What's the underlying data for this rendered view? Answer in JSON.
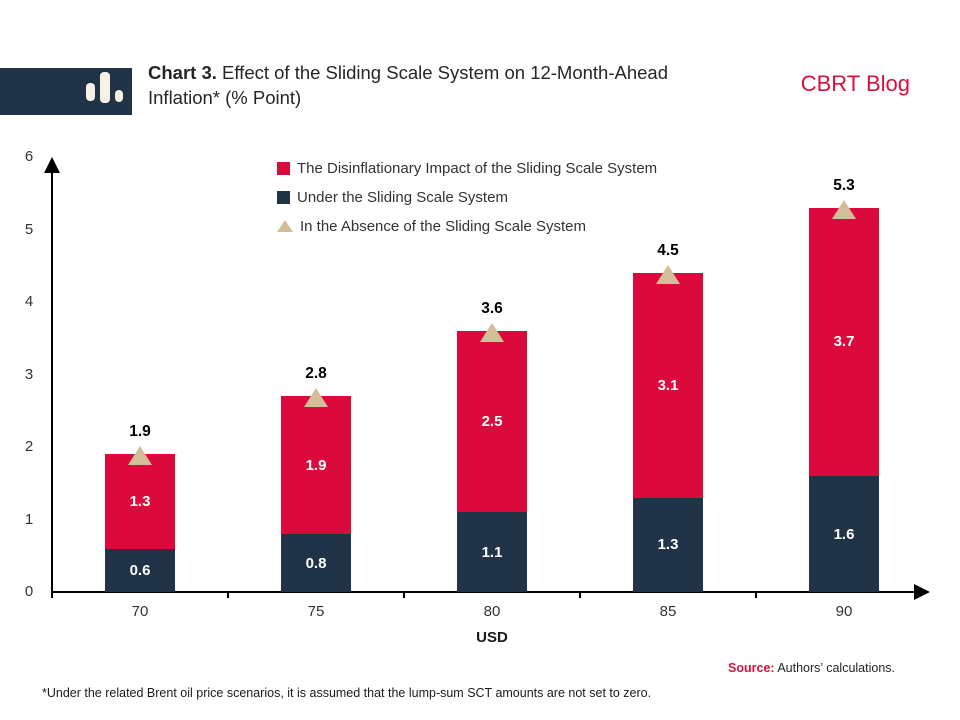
{
  "header": {
    "title_prefix": "Chart 3.",
    "title_line1_rest": " Effect of the Sliding Scale System on 12-Month-Ahead",
    "title_line2": "Inflation* (% Point)",
    "brand": "CBRT Blog"
  },
  "colors": {
    "red": "#dc0a3c",
    "navy": "#213447",
    "tan": "#d2be98",
    "brand_red": "#d8103f"
  },
  "legend": {
    "items": [
      {
        "label": "The Disinflationary Impact of the Sliding Scale System",
        "marker": "square",
        "color": "#dc0a3c"
      },
      {
        "label": "Under the Sliding Scale System",
        "marker": "square",
        "color": "#213447"
      },
      {
        "label": "In the Absence of the Sliding Scale System",
        "marker": "triangle",
        "color": "#d2be98"
      }
    ]
  },
  "chart_data": {
    "type": "bar",
    "stacked": true,
    "title": "Chart 3. Effect of the Sliding Scale System on 12-Month-Ahead Inflation* (% Point)",
    "categories": [
      "70",
      "75",
      "80",
      "85",
      "90"
    ],
    "series": [
      {
        "name": "Under the Sliding Scale System",
        "color": "#213447",
        "values": [
          0.6,
          0.8,
          1.1,
          1.3,
          1.6
        ]
      },
      {
        "name": "The Disinflationary Impact of the Sliding Scale System",
        "color": "#dc0a3c",
        "values": [
          1.3,
          1.9,
          2.5,
          3.1,
          3.7
        ]
      }
    ],
    "markers": {
      "name": "In the Absence of the Sliding Scale System",
      "shape": "triangle-up",
      "color": "#d2be98",
      "values": [
        1.9,
        2.8,
        3.6,
        4.5,
        5.3
      ]
    },
    "total_labels": [
      "1.9",
      "2.8",
      "3.6",
      "4.5",
      "5.3"
    ],
    "xlabel": "USD",
    "ylabel": "",
    "ylim": [
      0,
      6
    ],
    "yticks": [
      "0",
      "1",
      "2",
      "3",
      "4",
      "5",
      "6"
    ],
    "grid": false,
    "legend_position": "top-center"
  },
  "footer": {
    "source_label": "Source:",
    "source_text": " Authors’ calculations.",
    "footnote": "*Under the related Brent oil price scenarios, it is assumed that the lump-sum SCT amounts are not set to zero."
  }
}
